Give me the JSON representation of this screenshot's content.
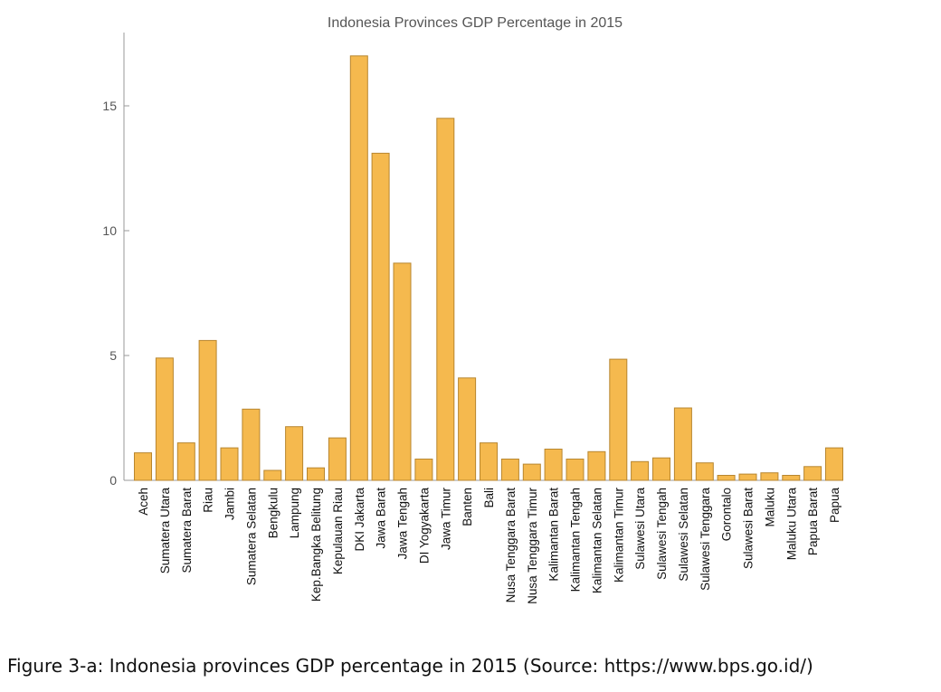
{
  "figure": {
    "caption": "Figure 3-a: Indonesia provinces GDP percentage in 2015 (Source: https://www.bps.go.id/)"
  },
  "colors": {
    "bar_fill": "#f5b94e",
    "bar_stroke": "#b8862f",
    "axis": "#9a9a9a",
    "text": "#555555"
  },
  "chart_data": {
    "type": "bar",
    "title": "Indonesia Provinces GDP Percentage in 2015",
    "xlabel": "",
    "ylabel": "",
    "ylim": [
      0,
      18
    ],
    "yticks": [
      0,
      5,
      10,
      15
    ],
    "grid": false,
    "categories": [
      "Aceh",
      "Sumatera Utara",
      "Sumatera Barat",
      "Riau",
      "Jambi",
      "Sumatera Selatan",
      "Bengkulu",
      "Lampung",
      "Kep.Bangka Belitung",
      "Kepulauan Riau",
      "DKI Jakarta",
      "Jawa Barat",
      "Jawa Tengah",
      "DI Yogyakarta",
      "Jawa Timur",
      "Banten",
      "Bali",
      "Nusa Tenggara Barat",
      "Nusa Tenggara Timur",
      "Kalimantan Barat",
      "Kalimantan Tengah",
      "Kalimantan Selatan",
      "Kalimantan Timur",
      "Sulawesi Utara",
      "Sulawesi Tengah",
      "Sulawesi Selatan",
      "Sulawesi Tenggara",
      "Gorontalo",
      "Sulawesi Barat",
      "Maluku",
      "Maluku Utara",
      "Papua Barat",
      "Papua"
    ],
    "values": [
      1.1,
      4.9,
      1.5,
      5.6,
      1.3,
      2.85,
      0.4,
      2.15,
      0.5,
      1.7,
      17.0,
      13.1,
      8.7,
      0.85,
      14.5,
      4.1,
      1.5,
      0.85,
      0.65,
      1.25,
      0.85,
      1.15,
      4.85,
      0.75,
      0.9,
      2.9,
      0.7,
      0.2,
      0.25,
      0.3,
      0.2,
      0.55,
      1.3
    ]
  }
}
